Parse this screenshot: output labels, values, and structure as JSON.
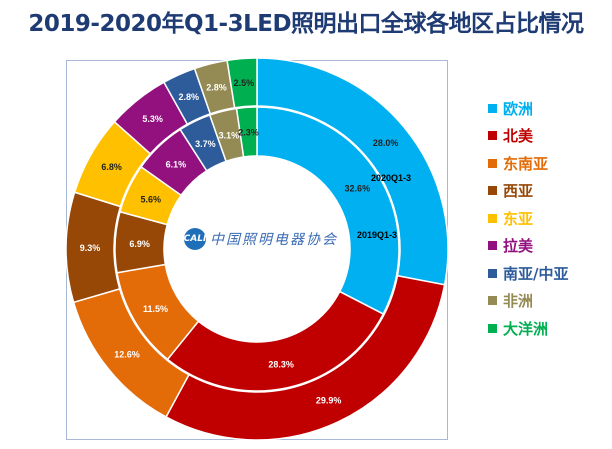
{
  "chart_data": {
    "type": "donut",
    "title": "2019-2020年Q1-3LED照明出口全球各地区占比情况",
    "categories": [
      "欧洲",
      "北美",
      "东南亚",
      "西亚",
      "东亚",
      "拉美",
      "南亚/中亚",
      "非洲",
      "大洋洲"
    ],
    "colors": [
      "#00b0f0",
      "#c00000",
      "#e36c09",
      "#974706",
      "#ffc000",
      "#92117e",
      "#2e5b9a",
      "#948a54",
      "#00b050"
    ],
    "series": [
      {
        "name": "2020Q1-3",
        "ring": "outer",
        "values": [
          28.0,
          29.9,
          12.6,
          9.3,
          6.8,
          5.3,
          2.8,
          2.8,
          2.5
        ]
      },
      {
        "name": "2019Q1-3",
        "ring": "inner",
        "values": [
          32.6,
          28.3,
          11.5,
          6.9,
          5.6,
          6.1,
          3.7,
          3.1,
          2.3
        ]
      }
    ],
    "annotations": [
      "2020Q1-3",
      "2019Q1-3"
    ],
    "legend_position": "right"
  },
  "logo": {
    "mark": "CALI",
    "text": "中国照明电器协会"
  }
}
